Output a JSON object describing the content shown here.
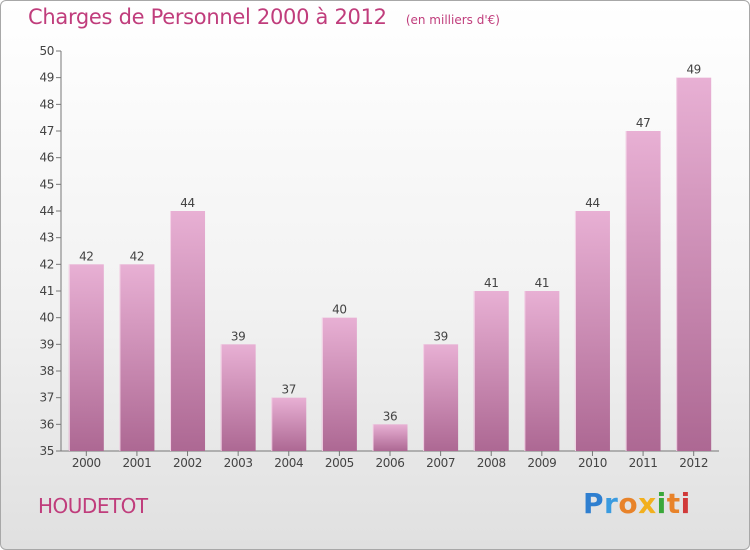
{
  "title": "Charges de Personnel 2000 à 2012",
  "unit": "(en milliers d'€)",
  "commune": "HOUDETOT",
  "brand": {
    "letters": [
      "P",
      "r",
      "o",
      "x",
      "i",
      "t",
      "i"
    ],
    "colors": [
      "#2f7fd0",
      "#3a9be0",
      "#e8832a",
      "#f2b01e",
      "#3aa83a",
      "#e8832a",
      "#d13a3a"
    ]
  },
  "colors": {
    "bar_top": "#e8b0d4",
    "bar_bottom": "#ad6893",
    "title": "#c03d7c"
  },
  "chart_data": {
    "type": "bar",
    "categories": [
      "2000",
      "2001",
      "2002",
      "2003",
      "2004",
      "2005",
      "2006",
      "2007",
      "2008",
      "2009",
      "2010",
      "2011",
      "2012"
    ],
    "values": [
      42,
      42,
      44,
      39,
      37,
      40,
      36,
      39,
      41,
      41,
      44,
      47,
      49
    ],
    "ylim": [
      35,
      50
    ],
    "yticks": [
      35,
      36,
      37,
      38,
      39,
      40,
      41,
      42,
      43,
      44,
      45,
      46,
      47,
      48,
      49,
      50
    ],
    "grid": false,
    "data_labels": true
  }
}
